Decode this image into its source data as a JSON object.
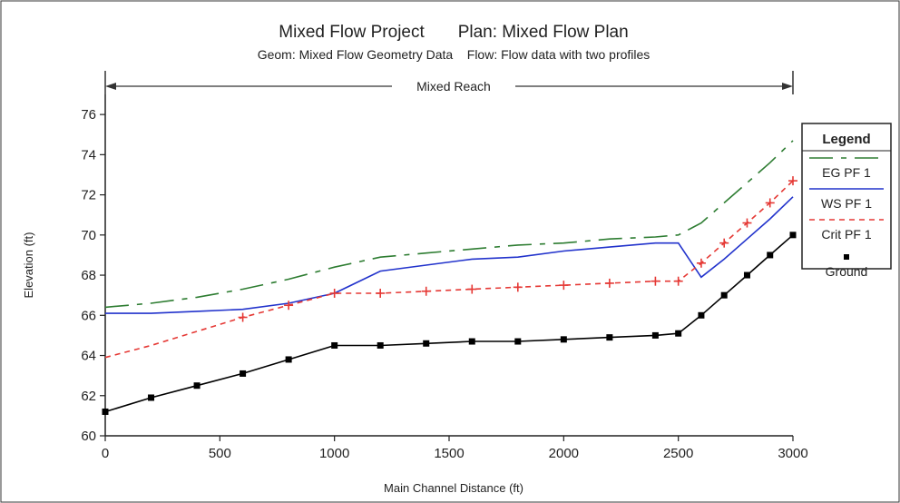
{
  "chart_data": {
    "type": "line",
    "title": "Mixed Flow Project       Plan: Mixed Flow Plan",
    "subtitle": "Geom: Mixed Flow Geometry Data    Flow: Flow data with two profiles",
    "reach_label": "Mixed Reach",
    "xlabel": "Main Channel Distance (ft)",
    "ylabel": "Elevation (ft)",
    "xlim": [
      0,
      3000
    ],
    "ylim": [
      60,
      77
    ],
    "x_ticks": [
      0,
      500,
      1000,
      1500,
      2000,
      2500,
      3000
    ],
    "y_ticks": [
      60,
      62,
      64,
      66,
      68,
      70,
      72,
      74,
      76
    ],
    "grid": false,
    "legend": {
      "title": "Legend",
      "placement": "right",
      "entries": [
        "EG  PF 1",
        "WS  PF 1",
        "Crit  PF 1",
        "Ground"
      ]
    },
    "series": [
      {
        "name": "EG  PF 1",
        "color": "#2e7d32",
        "style": "long-dash",
        "x": [
          0,
          200,
          400,
          600,
          800,
          1000,
          1200,
          1400,
          1600,
          1800,
          2000,
          2200,
          2400,
          2500,
          2600,
          2700,
          2800,
          2900,
          3000
        ],
        "y": [
          66.4,
          66.6,
          66.9,
          67.3,
          67.8,
          68.4,
          68.9,
          69.1,
          69.3,
          69.5,
          69.6,
          69.8,
          69.9,
          70.0,
          70.6,
          71.6,
          72.6,
          73.6,
          74.7
        ]
      },
      {
        "name": "WS  PF 1",
        "color": "#2233cc",
        "style": "solid",
        "x": [
          0,
          200,
          400,
          600,
          800,
          1000,
          1200,
          1400,
          1600,
          1800,
          2000,
          2200,
          2400,
          2500,
          2600,
          2700,
          2800,
          2900,
          3000
        ],
        "y": [
          66.1,
          66.1,
          66.2,
          66.3,
          66.6,
          67.1,
          68.2,
          68.5,
          68.8,
          68.9,
          69.2,
          69.4,
          69.6,
          69.6,
          67.9,
          68.8,
          69.8,
          70.8,
          71.9
        ]
      },
      {
        "name": "Crit  PF 1",
        "color": "#e53935",
        "style": "short-dash-plus",
        "x": [
          0,
          200,
          400,
          600,
          800,
          1000,
          1200,
          1400,
          1600,
          1800,
          2000,
          2200,
          2400,
          2500,
          2600,
          2700,
          2800,
          2900,
          3000
        ],
        "y": [
          63.9,
          64.5,
          65.2,
          65.9,
          66.5,
          67.1,
          67.1,
          67.2,
          67.3,
          67.4,
          67.5,
          67.6,
          67.7,
          67.7,
          68.6,
          69.6,
          70.6,
          71.6,
          72.7
        ]
      },
      {
        "name": "Ground",
        "color": "#000000",
        "style": "solid-square",
        "x": [
          0,
          200,
          400,
          600,
          800,
          1000,
          1200,
          1400,
          1600,
          1800,
          2000,
          2200,
          2400,
          2500,
          2600,
          2700,
          2800,
          2900,
          3000
        ],
        "y": [
          61.2,
          61.9,
          62.5,
          63.1,
          63.8,
          64.5,
          64.5,
          64.6,
          64.7,
          64.7,
          64.8,
          64.9,
          65.0,
          65.1,
          66.0,
          67.0,
          68.0,
          69.0,
          70.0
        ]
      }
    ]
  }
}
